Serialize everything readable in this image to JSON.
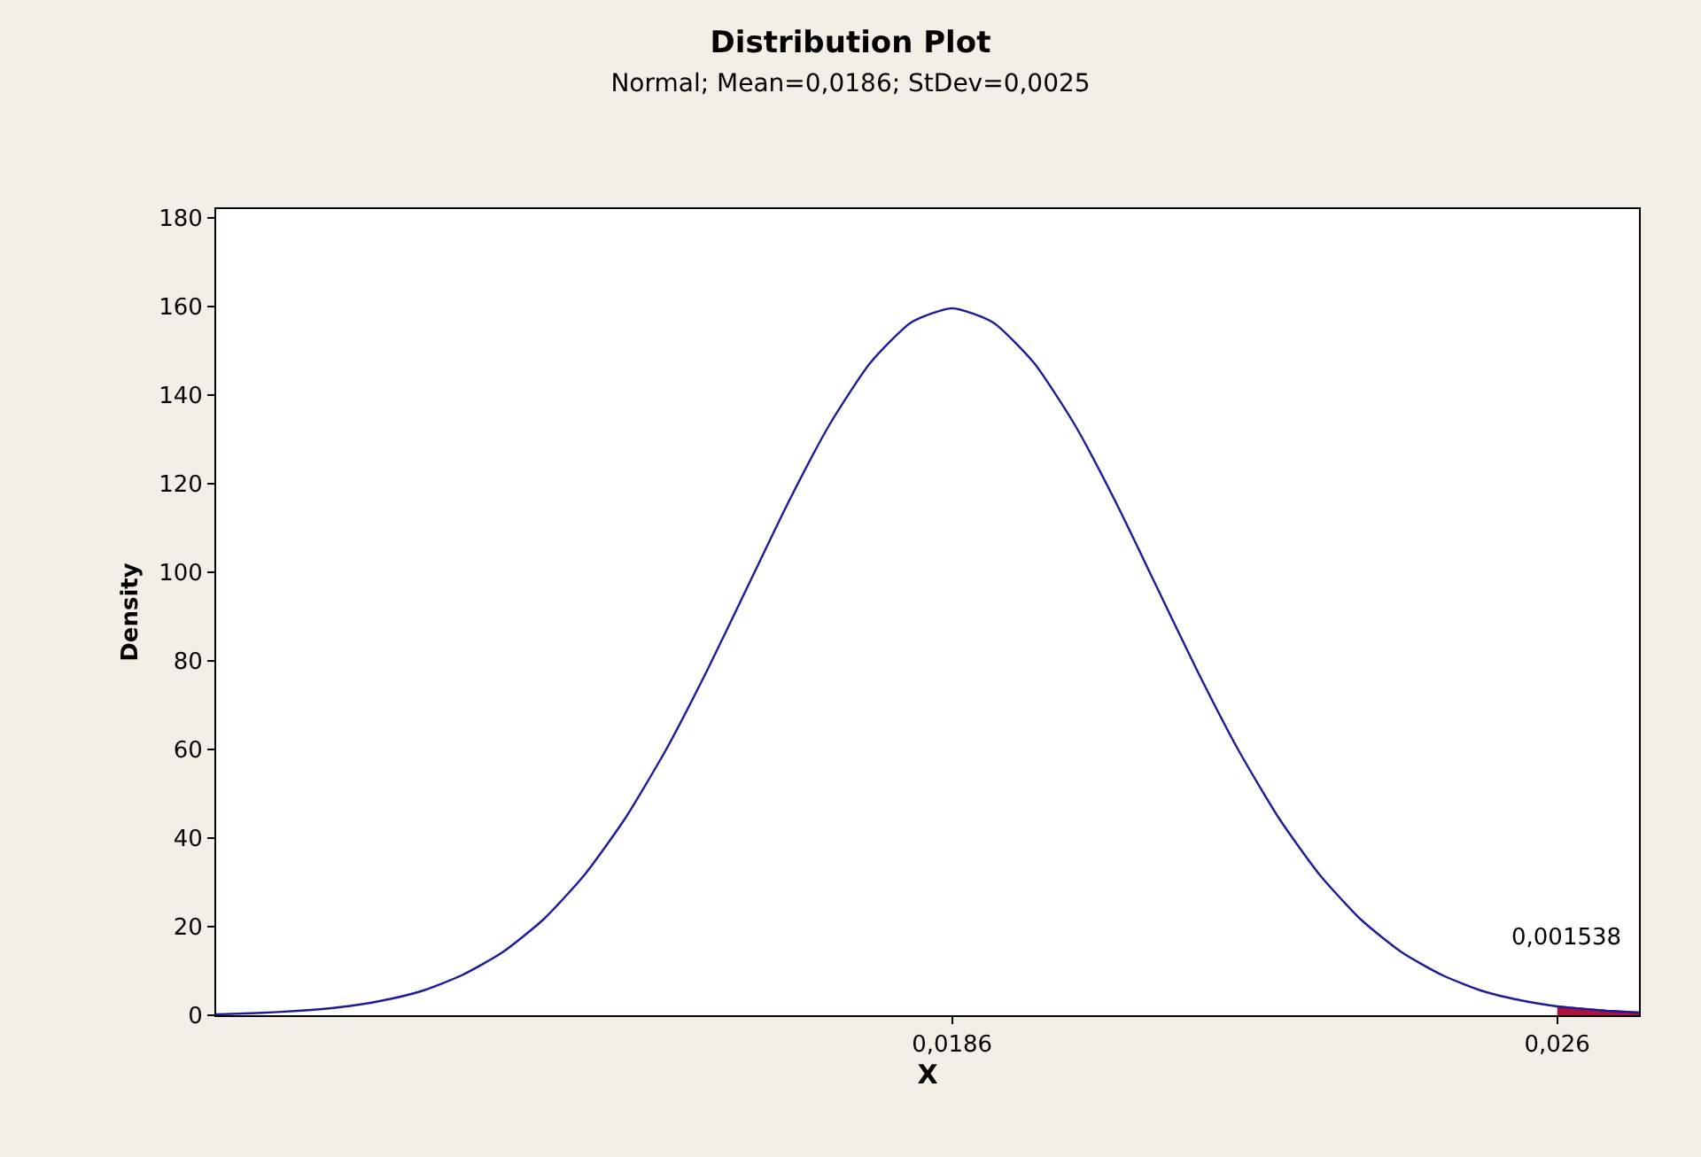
{
  "chart_data": {
    "type": "line",
    "title": "Distribution Plot",
    "subtitle": "Normal; Mean=0,0186; StDev=0,0025",
    "xlabel": "X",
    "ylabel": "Density",
    "x": [
      0.0096,
      0.0101,
      0.0106,
      0.0111,
      0.0116,
      0.0121,
      0.0126,
      0.0131,
      0.0136,
      0.0141,
      0.0146,
      0.0151,
      0.0156,
      0.0161,
      0.0166,
      0.0171,
      0.0176,
      0.0181,
      0.0186,
      0.0191,
      0.0196,
      0.0201,
      0.0206,
      0.0211,
      0.0216,
      0.0221,
      0.0226,
      0.0231,
      0.0236,
      0.0241,
      0.0246,
      0.0251,
      0.0256,
      0.026,
      0.0261,
      0.0266,
      0.027
    ],
    "series": [
      {
        "color": "#1c1c9a",
        "values": [
          0.2,
          0.5,
          1.0,
          1.8,
          3.2,
          5.4,
          9.0,
          14.2,
          21.6,
          31.6,
          44.4,
          59.9,
          77.7,
          96.8,
          115.9,
          133.3,
          147.3,
          156.4,
          159.6,
          156.4,
          147.3,
          133.3,
          115.9,
          96.8,
          77.7,
          59.9,
          44.4,
          31.6,
          21.6,
          14.2,
          9.0,
          5.4,
          3.2,
          2.0,
          1.8,
          1.0,
          0.6
        ]
      },
      {
        "type": "area",
        "color": "#b0103a",
        "x": [
          0.026,
          0.0261,
          0.0266,
          0.027
        ],
        "values": [
          2.0,
          1.8,
          1.0,
          0.6
        ]
      }
    ],
    "xlim": [
      0.0096,
      0.027
    ],
    "xticks": [
      {
        "value": 0.0186,
        "label": "0,0186"
      },
      {
        "value": 0.026,
        "label": "0,026"
      }
    ],
    "ylim": [
      0,
      182
    ],
    "yticks": [
      0,
      20,
      40,
      60,
      80,
      100,
      120,
      140,
      160,
      180
    ],
    "annotations": [
      "0,001538"
    ],
    "marker": "none",
    "line_style": "solid"
  }
}
